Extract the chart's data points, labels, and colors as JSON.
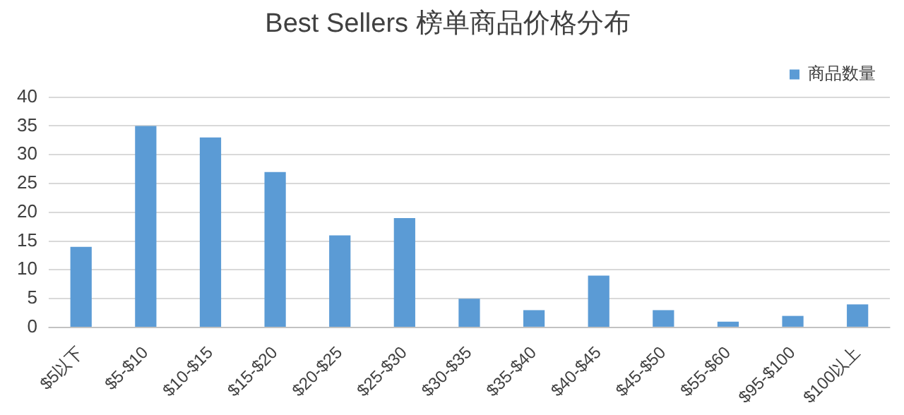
{
  "chart_data": {
    "type": "bar",
    "title": "Best Sellers 榜单商品价格分布",
    "categories": [
      "$5以下",
      "$5-$10",
      "$10-$15",
      "$15-$20",
      "$20-$25",
      "$25-$30",
      "$30-$35",
      "$35-$40",
      "$40-$45",
      "$45-$50",
      "$55-$60",
      "$95-$100",
      "$100以上"
    ],
    "series": [
      {
        "name": "商品数量",
        "color": "#5b9bd5",
        "values": [
          14,
          35,
          33,
          27,
          16,
          19,
          5,
          3,
          9,
          3,
          1,
          2,
          4
        ]
      }
    ],
    "ylim": [
      0,
      40
    ],
    "yticks": [
      0,
      5,
      10,
      15,
      20,
      25,
      30,
      35,
      40
    ],
    "grid": "y",
    "legend": "top right"
  }
}
